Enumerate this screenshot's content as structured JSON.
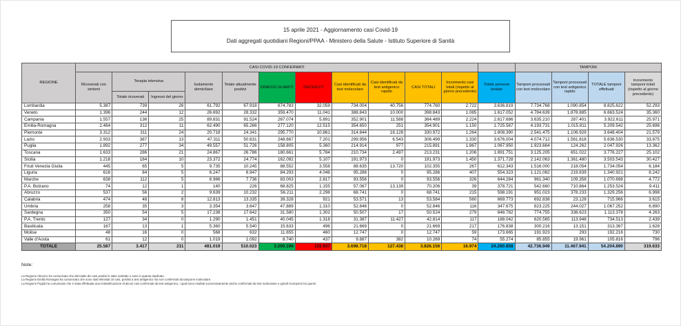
{
  "title": {
    "line1": "15 aprile 2021 - Aggiornamento casi Covid-19",
    "line2": "Dati aggregati quotidiani Regioni/PPAA - Ministero della Salute - Istituto Superiore di Sanità"
  },
  "table": {
    "groups": {
      "confermati": "CASI COVID-19 CONFERMATI",
      "tamponi": "TAMPONI",
      "terapia_intensiva": "Terapia intensiva"
    },
    "columns": {
      "regione": "REGIONE",
      "ricoverati": "Ricoverati con sintomi",
      "ti_totale": "Totale ricoverati",
      "ti_ingressi": "Ingressi del giorno",
      "isolamento": "Isolamento domiciliare",
      "positivi": "Totale attualmente positivi",
      "dimessi": "DIMESSI GUARITI",
      "deceduti": "DECEDUTI",
      "casi_molecolare": "Casi identificati da test molecolare",
      "casi_antigenico": "Casi identificati da test antigenico rapido",
      "casi_totali": "CASI TOTALI",
      "incremento_casi": "Incremento casi totali (rispetto al giorno precedente)",
      "testate": "Totale persone testate",
      "tamponi_molecolare": "Tamponi processati con test molecolare",
      "tamponi_antigenico": "Tamponi processati con test antigenico rapido",
      "tamponi_totale": "TOTALE tamponi effettuati",
      "incremento_tamponi": "Incremento tamponi totali (rispetto al giorno precedente)"
    },
    "rows": [
      [
        "Lombardia",
        "5.387",
        "739",
        "26",
        "61.792",
        "67.918",
        "674.783",
        "32.059",
        "734.004",
        "40.756",
        "774.760",
        "2.722",
        "3.636.819",
        "7.734.768",
        "1.090.854",
        "8.825.622",
        "52.293"
      ],
      [
        "Veneto",
        "1.396",
        "244",
        "12",
        "26.692",
        "28.332",
        "359.470",
        "11.041",
        "388.843",
        "10.000",
        "398.843",
        "1.085",
        "1.617.052",
        "4.784.639",
        "1.878.885",
        "6.663.524",
        "35.360"
      ],
      [
        "Campania",
        "1.557",
        "136",
        "25",
        "89.831",
        "91.524",
        "267.074",
        "5.891",
        "352.901",
        "11.588",
        "364.489",
        "2.224",
        "2.617.686",
        "3.635.210",
        "287.401",
        "3.922.611",
        "25.971"
      ],
      [
        "Emilia-Romagna",
        "2.464",
        "312",
        "11",
        "62.490",
        "65.266",
        "277.120",
        "12.515",
        "354.650",
        "251",
        "354.901",
        "1.150",
        "1.725.567",
        "4.193.731",
        "1.015.811",
        "5.209.542",
        "25.696"
      ],
      [
        "Piemonte",
        "3.312",
        "311",
        "24",
        "20.718",
        "24.341",
        "295.770",
        "10.861",
        "314.844",
        "16.128",
        "330.972",
        "1.264",
        "1.608.390",
        "2.541.475",
        "1.106.929",
        "3.648.404",
        "21.579"
      ],
      [
        "Lazio",
        "2.933",
        "387",
        "13",
        "47.311",
        "50.631",
        "248.667",
        "7.201",
        "299.956",
        "6.543",
        "306.499",
        "1.330",
        "3.676.004",
        "4.074.712",
        "1.561.818",
        "5.636.530",
        "33.875"
      ],
      [
        "Puglia",
        "1.892",
        "277",
        "34",
        "49.557",
        "51.726",
        "158.805",
        "5.360",
        "214.914",
        "977",
        "215.891",
        "1.867",
        "1.067.950",
        "1.923.664",
        "124.262",
        "2.047.926",
        "13.362"
      ],
      [
        "Toscana",
        "1.633",
        "286",
        "21",
        "24.867",
        "26.786",
        "180.661",
        "5.784",
        "210.734",
        "2.497",
        "213.231",
        "1.206",
        "1.891.751",
        "3.125.205",
        "651.022",
        "3.776.227",
        "25.102"
      ],
      [
        "Sicilia",
        "1.218",
        "184",
        "10",
        "23.372",
        "24.774",
        "162.092",
        "5.107",
        "191.973",
        "0",
        "191.973",
        "1.450",
        "1.371.728",
        "2.142.063",
        "1.361.480",
        "3.503.543",
        "30.427"
      ],
      [
        "Friuli Venezia Giulia",
        "445",
        "65",
        "5",
        "9.735",
        "10.245",
        "88.552",
        "3.558",
        "88.635",
        "13.720",
        "102.355",
        "267",
        "612.343",
        "1.516.000",
        "218.054",
        "1.734.054",
        "6.184"
      ],
      [
        "Liguria",
        "616",
        "84",
        "5",
        "6.247",
        "6.947",
        "84.293",
        "4.046",
        "95.286",
        "0",
        "95.286",
        "407",
        "554.323",
        "1.121.082",
        "219.839",
        "1.340.921",
        "8.242"
      ],
      [
        "Marche",
        "638",
        "112",
        "5",
        "6.986",
        "7.736",
        "83.003",
        "2.817",
        "93.556",
        "0",
        "93.556",
        "326",
        "644.284",
        "961.340",
        "109.358",
        "1.070.698",
        "4.772"
      ],
      [
        "P.A. Bolzano",
        "74",
        "12",
        "1",
        "140",
        "226",
        "68.825",
        "1.155",
        "57.067",
        "13.139",
        "70.206",
        "39",
        "378.721",
        "542.660",
        "710.864",
        "1.253.524",
        "9.411"
      ],
      [
        "Abruzzo",
        "537",
        "56",
        "2",
        "9.639",
        "10.232",
        "56.211",
        "2.298",
        "68.741",
        "0",
        "68.741",
        "215",
        "598.191",
        "951.023",
        "378.233",
        "1.329.256",
        "6.998"
      ],
      [
        "Calabria",
        "474",
        "48",
        "8",
        "12.813",
        "13.335",
        "39.328",
        "921",
        "53.571",
        "13",
        "53.584",
        "560",
        "669.773",
        "692.838",
        "23.128",
        "715.966",
        "3.615"
      ],
      [
        "Umbria",
        "258",
        "35",
        "3",
        "3.354",
        "3.647",
        "47.889",
        "1.310",
        "52.846",
        "0",
        "52.846",
        "116",
        "347.675",
        "823.225",
        "244.027",
        "1.067.252",
        "6.890"
      ],
      [
        "Sardegna",
        "350",
        "54",
        "5",
        "17.238",
        "17.642",
        "31.580",
        "1.302",
        "50.507",
        "17",
        "50.524",
        "279",
        "648.782",
        "774.755",
        "338.623",
        "1.113.378",
        "4.263"
      ],
      [
        "P.A. Trento",
        "127",
        "34",
        "0",
        "1.290",
        "1.451",
        "40.045",
        "1.318",
        "31.387",
        "11.427",
        "42.814",
        "117",
        "188.042",
        "620.565",
        "113.948",
        "734.513",
        "2.439"
      ],
      [
        "Basilicata",
        "167",
        "13",
        "1",
        "5.360",
        "5.540",
        "15.633",
        "496",
        "21.669",
        "0",
        "21.669",
        "217",
        "176.838",
        "300.216",
        "13.151",
        "313.367",
        "1.628"
      ],
      [
        "Molise",
        "48",
        "16",
        "0",
        "568",
        "632",
        "11.655",
        "460",
        "12.747",
        "0",
        "12.747",
        "59",
        "173.665",
        "191.923",
        "293",
        "192.216",
        "730"
      ],
      [
        "Valle d'Aosta",
        "61",
        "12",
        "0",
        "1.019",
        "1.092",
        "8.740",
        "437",
        "9.887",
        "382",
        "10.269",
        "74",
        "55.274",
        "85.855",
        "19.961",
        "105.816",
        "796"
      ]
    ],
    "totale": {
      "label": "TOTALE",
      "values": [
        "25.587",
        "3.417",
        "211",
        "481.019",
        "510.023",
        "3.200.196",
        "115.937",
        "3.698.718",
        "127.438",
        "3.826.156",
        "16.974",
        "24.260.858",
        "42.736.949",
        "11.467.941",
        "54.204.890",
        "319.633"
      ]
    }
  },
  "notes": {
    "label": "Note:",
    "lines": [
      "La Regione Abruzzo ha comunicato che dal totale dei casi positivi è stato sottratto 1 caso in quanto duplicato.",
      "La Regione Emilia Romagna ha comunicato che sono stati eliminati 10 casi, positivi a test antigenico ma non confermati da tampone molecolare.",
      "La Regione Puglia ha comunicato che è stata effettuata una riclassificazione di alcuni casi confermati da test antigenico, i quali sono risultati successivamente anche confermati da test molecolare e quindi ricompresi tra questi."
    ]
  },
  "colors": {
    "green": "#00b050",
    "red": "#ff0000",
    "yellow": "#ffc000",
    "cyan": "#00b0f0",
    "light_blue": "#bdd7ee",
    "header_gray": "#d0cece",
    "regione_gray": "#a6a6a6",
    "total_gray": "#d9d9d9"
  }
}
